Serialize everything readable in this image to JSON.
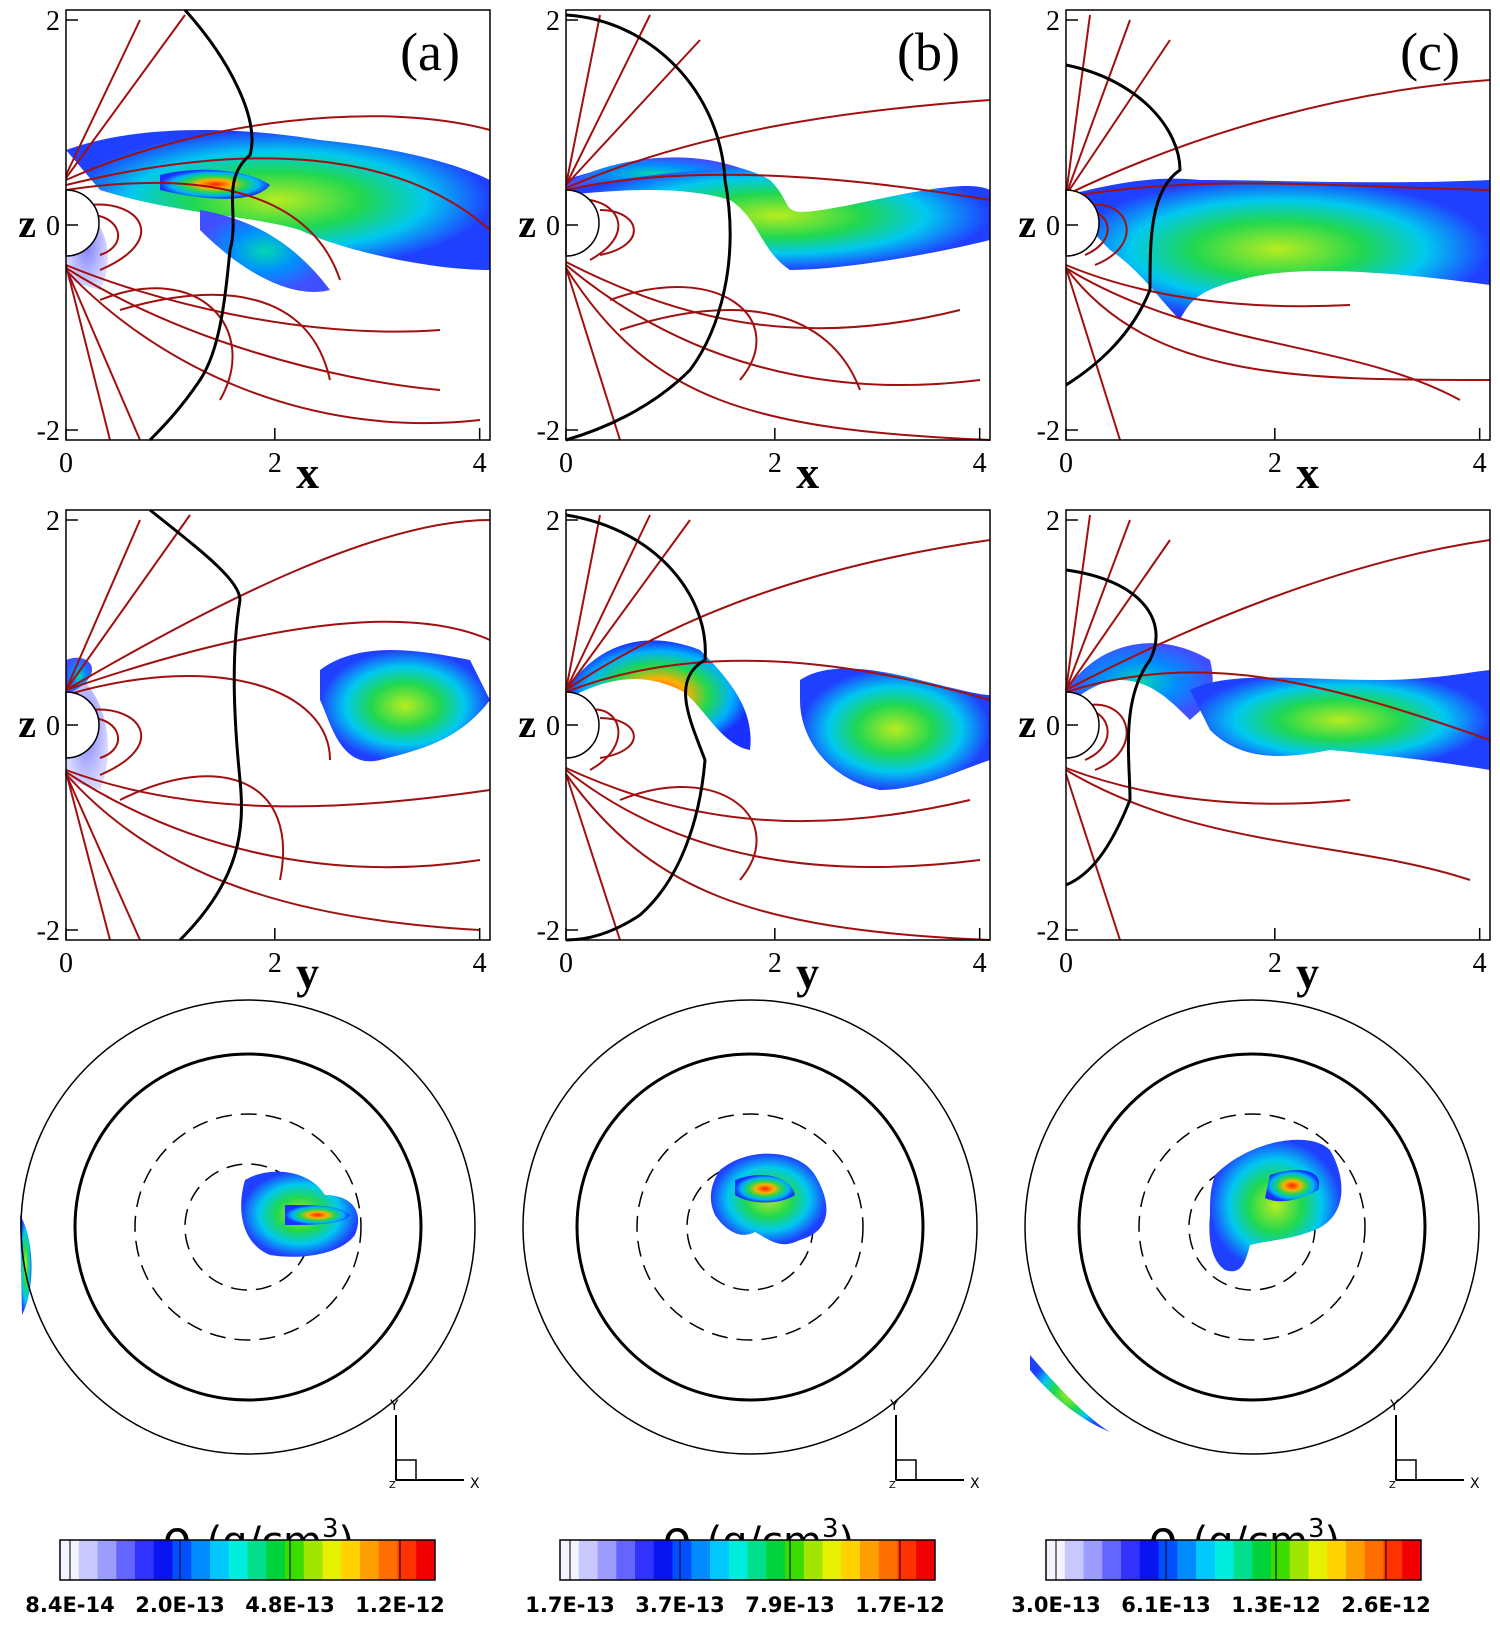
{
  "figure": {
    "columns": [
      {
        "panel_label": "(a)",
        "xz_plot": {
          "xlabel": "x",
          "ylabel": "z",
          "xticks": [
            "0",
            "2",
            "4"
          ],
          "yticks": [
            "2",
            "0",
            "-2"
          ]
        },
        "yz_plot": {
          "xlabel": "y",
          "ylabel": "z",
          "xticks": [
            "0",
            "2",
            "4"
          ],
          "yticks": [
            "2",
            "0",
            "-2"
          ]
        },
        "polar_axes": {
          "y": "Y",
          "x": "X",
          "z": "Z"
        },
        "colorbar": {
          "title_symbol": "ρ",
          "title_unit": "(g/cm",
          "title_exp": "3",
          "title_close": ")",
          "ticks": [
            "8.4E-14",
            "2.0E-13",
            "4.8E-13",
            "1.2E-12"
          ]
        }
      },
      {
        "panel_label": "(b)",
        "xz_plot": {
          "xlabel": "x",
          "ylabel": "z",
          "xticks": [
            "0",
            "2",
            "4"
          ],
          "yticks": [
            "2",
            "0",
            "-2"
          ]
        },
        "yz_plot": {
          "xlabel": "y",
          "ylabel": "z",
          "xticks": [
            "0",
            "2",
            "4"
          ],
          "yticks": [
            "2",
            "0",
            "-2"
          ]
        },
        "polar_axes": {
          "y": "Y",
          "x": "X",
          "z": "Z"
        },
        "colorbar": {
          "title_symbol": "ρ",
          "title_unit": "(g/cm",
          "title_exp": "3",
          "title_close": ")",
          "ticks": [
            "1.7E-13",
            "3.7E-13",
            "7.9E-13",
            "1.7E-12"
          ]
        }
      },
      {
        "panel_label": "(c)",
        "xz_plot": {
          "xlabel": "x",
          "ylabel": "z",
          "xticks": [
            "0",
            "2",
            "4"
          ],
          "yticks": [
            "2",
            "0",
            "-2"
          ]
        },
        "yz_plot": {
          "xlabel": "y",
          "ylabel": "z",
          "xticks": [
            "0",
            "2",
            "4"
          ],
          "yticks": [
            "2",
            "0",
            "-2"
          ]
        },
        "polar_axes": {
          "y": "Y",
          "x": "X",
          "z": "Z"
        },
        "colorbar": {
          "title_symbol": "ρ",
          "title_unit": "(g/cm",
          "title_exp": "3",
          "title_close": ")",
          "ticks": [
            "3.0E-13",
            "6.1E-13",
            "1.3E-12",
            "2.6E-12"
          ]
        }
      }
    ],
    "colormap": [
      "#f4f4ff",
      "#c8c8ff",
      "#9c9cff",
      "#6464ff",
      "#3232ff",
      "#0a14f0",
      "#0050ff",
      "#008cff",
      "#00c8ff",
      "#00ecdc",
      "#00e08c",
      "#00d23c",
      "#3cdc00",
      "#a0e600",
      "#e6f000",
      "#ffd200",
      "#ffa000",
      "#ff6e00",
      "#ff3200",
      "#f00000"
    ],
    "colors": {
      "field_lines": "#a01010",
      "boundary": "#000000",
      "axes": "#000000"
    }
  },
  "chart_data": [
    {
      "type": "heatmap",
      "panel": "(a)",
      "view": "x-z plane",
      "xlabel": "x",
      "ylabel": "z",
      "xlim": [
        0,
        4.1
      ],
      "ylim": [
        -2.05,
        2.05
      ],
      "variable": "ρ (g/cm3)",
      "colorbar_ticks": [
        8.4e-14,
        2e-13,
        4.8e-13,
        1.2e-12
      ]
    },
    {
      "type": "heatmap",
      "panel": "(b)",
      "view": "x-z plane",
      "xlabel": "x",
      "ylabel": "z",
      "xlim": [
        0,
        4.1
      ],
      "ylim": [
        -2.05,
        2.05
      ],
      "variable": "ρ (g/cm3)",
      "colorbar_ticks": [
        1.7e-13,
        3.7e-13,
        7.9e-13,
        1.7e-12
      ]
    },
    {
      "type": "heatmap",
      "panel": "(c)",
      "view": "x-z plane",
      "xlabel": "x",
      "ylabel": "z",
      "xlim": [
        0,
        4.1
      ],
      "ylim": [
        -2.05,
        2.05
      ],
      "variable": "ρ (g/cm3)",
      "colorbar_ticks": [
        3e-13,
        6.1e-13,
        1.3e-12,
        2.6e-12
      ]
    },
    {
      "type": "heatmap",
      "panel": "(a)",
      "view": "y-z plane",
      "xlabel": "y",
      "ylabel": "z",
      "xlim": [
        0,
        4.1
      ],
      "ylim": [
        -2.05,
        2.05
      ]
    },
    {
      "type": "heatmap",
      "panel": "(b)",
      "view": "y-z plane",
      "xlabel": "y",
      "ylabel": "z",
      "xlim": [
        0,
        4.1
      ],
      "ylim": [
        -2.05,
        2.05
      ]
    },
    {
      "type": "heatmap",
      "panel": "(c)",
      "view": "y-z plane",
      "xlabel": "y",
      "ylabel": "z",
      "xlim": [
        0,
        4.1
      ],
      "ylim": [
        -2.05,
        2.05
      ]
    },
    {
      "type": "heatmap",
      "panel": "(a)",
      "view": "polar projection"
    },
    {
      "type": "heatmap",
      "panel": "(b)",
      "view": "polar projection"
    },
    {
      "type": "heatmap",
      "panel": "(c)",
      "view": "polar projection"
    }
  ]
}
